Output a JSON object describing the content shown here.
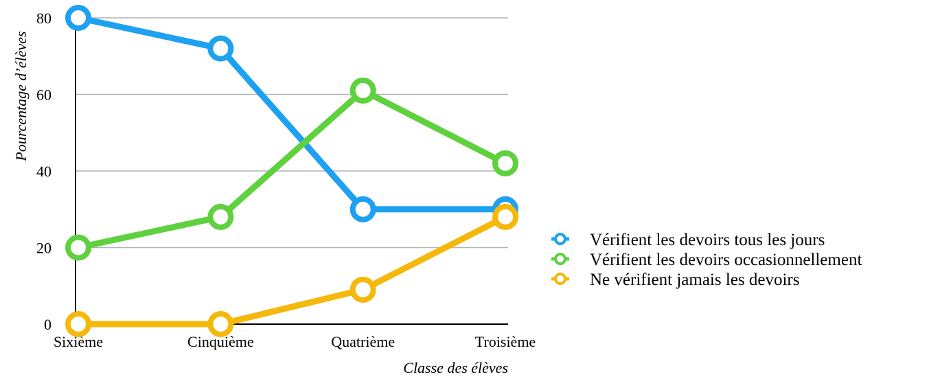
{
  "chart_data": {
    "type": "line",
    "categories": [
      "Sixième",
      "Cinquième",
      "Quatrième",
      "Troisième"
    ],
    "series": [
      {
        "name": "Vérifient les devoirs tous les jours",
        "values": [
          80,
          72,
          30,
          30
        ],
        "color": "#1ea1f0"
      },
      {
        "name": "Vérifient les devoirs occasionnellement",
        "values": [
          20,
          28,
          61,
          42
        ],
        "color": "#5fd13f"
      },
      {
        "name": "Ne vérifient jamais les devoirs",
        "values": [
          0,
          0,
          9,
          28
        ],
        "color": "#f5b80b"
      }
    ],
    "xlabel": "Classe des élèves",
    "ylabel": "Pourcentage d’élèves",
    "ylim": [
      0,
      80
    ],
    "yticks": [
      0,
      20,
      40,
      60,
      80
    ],
    "grid": true,
    "legend_position": "right"
  }
}
